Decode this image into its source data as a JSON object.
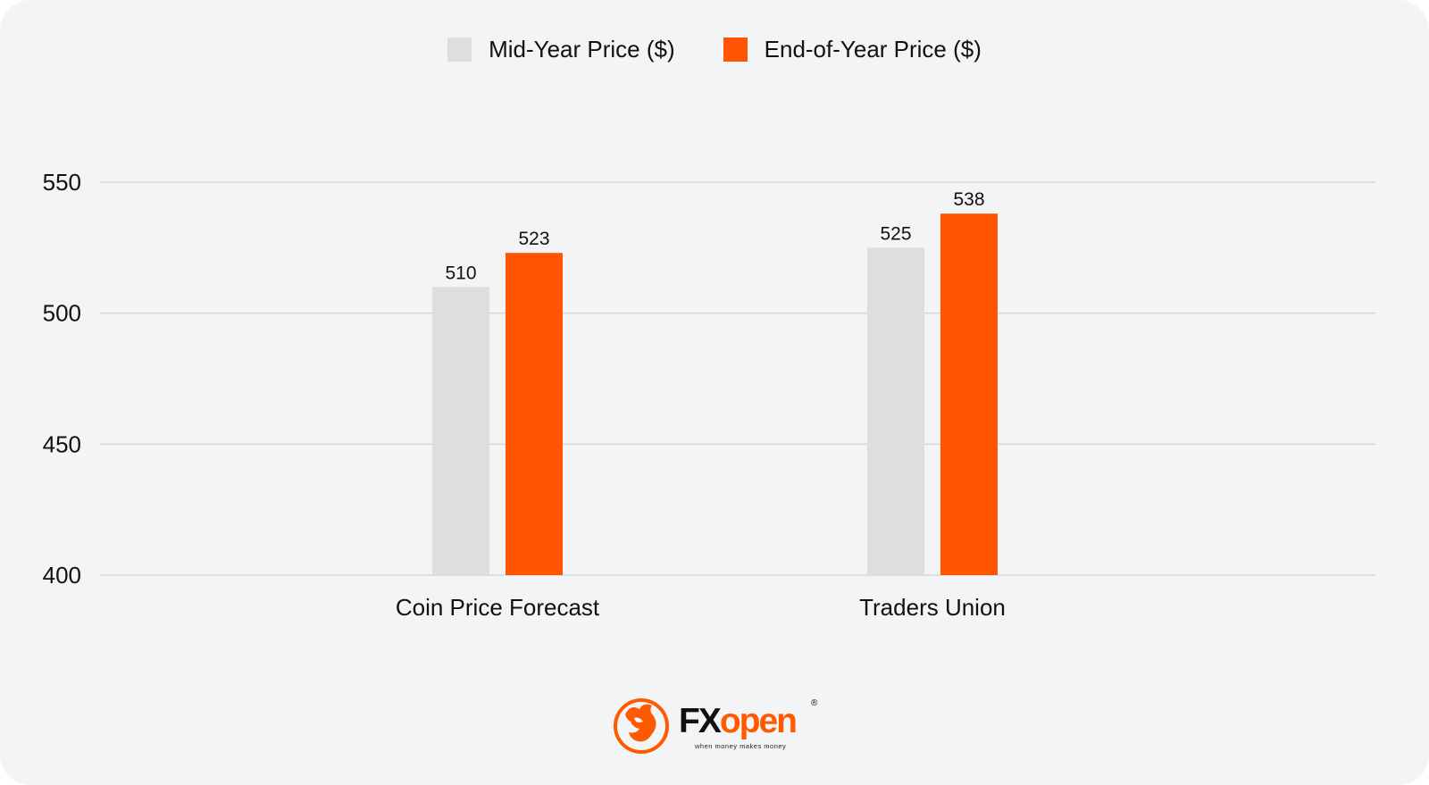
{
  "colors": {
    "background": "#f3f4f6",
    "gridline": "#d4d6da",
    "text": "#111111"
  },
  "chart_data": {
    "type": "bar",
    "title": "",
    "xlabel": "",
    "ylabel": "",
    "categories": [
      "Coin Price Forecast",
      "Traders Union"
    ],
    "series": [
      {
        "name": "Mid-Year Price ($)",
        "values": [
          510,
          525
        ],
        "color": "#dddee0"
      },
      {
        "name": "End-of-Year Price ($)",
        "values": [
          523,
          538
        ],
        "color": "#ff5500"
      }
    ],
    "ylim": [
      400,
      550
    ],
    "yticks": [
      400,
      450,
      500,
      550
    ],
    "grid": true,
    "legend_position": "top-center",
    "data_labels": true
  },
  "branding": {
    "logo_icon": "fxopen-bull-logo-icon",
    "logo_fx": "FX",
    "logo_open": "open",
    "logo_reg": "®",
    "tagline": "when money makes money"
  }
}
